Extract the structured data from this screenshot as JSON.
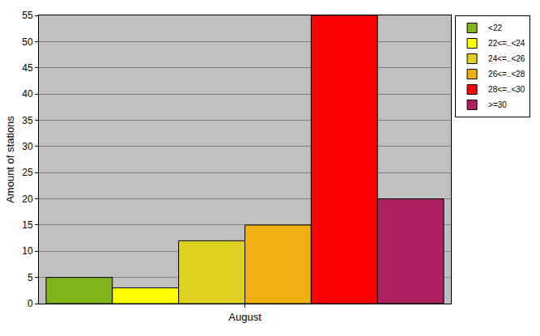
{
  "chart_data": {
    "type": "bar",
    "y_label": "Amount of stations",
    "categories": [
      "August"
    ],
    "series": [
      {
        "name": "<22",
        "color": "#80b41a",
        "values": [
          5
        ]
      },
      {
        "name": "22<=..<24",
        "color": "#ffff00",
        "values": [
          3
        ]
      },
      {
        "name": "24<=..<26",
        "color": "#e0d020",
        "values": [
          12
        ]
      },
      {
        "name": "26<=..<28",
        "color": "#f0b014",
        "values": [
          15
        ]
      },
      {
        "name": "28<=..<30",
        "color": "#ff0000",
        "values": [
          55
        ]
      },
      {
        "name": ">=30",
        "color": "#ad2161",
        "values": [
          20
        ]
      }
    ],
    "ylim": [
      0,
      55
    ],
    "yticks": [
      0,
      5,
      10,
      15,
      20,
      25,
      30,
      35,
      40,
      45,
      50,
      55
    ],
    "grid": true,
    "legend": "top right"
  }
}
